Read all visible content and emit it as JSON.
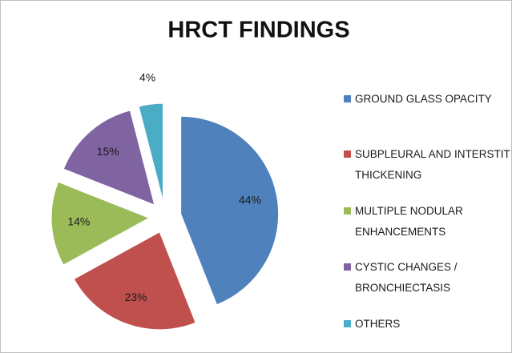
{
  "chart_data": {
    "type": "pie",
    "title": "HRCT FINDINGS",
    "categories": [
      "GROUND GLASS OPACITY",
      "SUBPLEURAL AND INTERSTITIAL THICKENING",
      "MULTIPLE NODULAR ENHANCEMENTS",
      "CYSTIC CHANGES / BRONCHIECTASIS",
      "OTHERS"
    ],
    "values": [
      44,
      23,
      14,
      15,
      4
    ],
    "value_labels": [
      "44%",
      "23%",
      "14%",
      "15%",
      "4%"
    ],
    "colors": [
      "#4f81bd",
      "#c0504d",
      "#9bbb59",
      "#8064a2",
      "#4bacc6"
    ],
    "legend": "right"
  }
}
